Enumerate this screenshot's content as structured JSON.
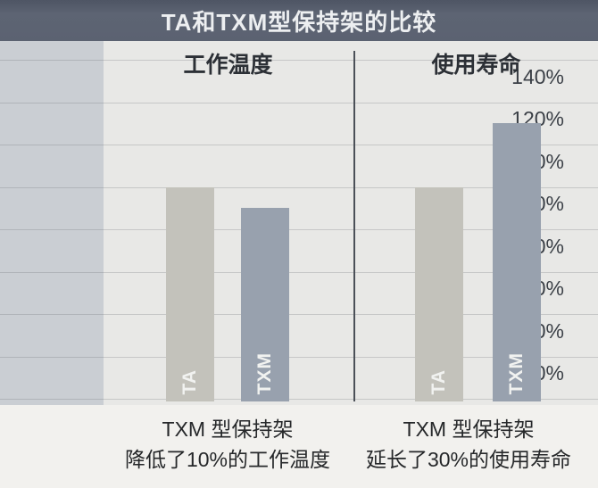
{
  "title": "TA和TXM型保持架的比较",
  "y_axis": {
    "ticks": [
      "140%",
      "120%",
      "100%",
      "80%",
      "60%",
      "40%",
      "20%",
      "0%"
    ]
  },
  "panels": [
    {
      "id": "temperature",
      "header": "工作温度",
      "bars": [
        {
          "label": "TA",
          "value": 100
        },
        {
          "label": "TXM",
          "value": 90
        }
      ],
      "caption_line1": "TXM 型保持架",
      "caption_line2": "降低了10%的工作温度"
    },
    {
      "id": "life",
      "header": "使用寿命",
      "bars": [
        {
          "label": "TA",
          "value": 100
        },
        {
          "label": "TXM",
          "value": 130
        }
      ],
      "caption_line1": "TXM 型保持架",
      "caption_line2": "延长了30%的使用寿命"
    }
  ],
  "colors": {
    "title_bar": "#5b6271",
    "title_text": "#edeff1",
    "ta_bar": "#c3c2bb",
    "txm_bar": "#98a1ae",
    "label_column_bg": "#caced3",
    "plot_bg": "#e8e8e6",
    "caption_bg": "#f2f1ee",
    "divider": "#4b5058"
  },
  "chart_data": [
    {
      "type": "bar",
      "title": "工作温度",
      "categories": [
        "TA",
        "TXM"
      ],
      "values": [
        100,
        90
      ],
      "ylabel": "",
      "ytick_labels": [
        "0%",
        "20%",
        "40%",
        "60%",
        "80%",
        "100%",
        "120%",
        "140%"
      ],
      "ylim": [
        0,
        140
      ],
      "grid": true,
      "annotation": "TXM 型保持架 降低了10%的工作温度"
    },
    {
      "type": "bar",
      "title": "使用寿命",
      "categories": [
        "TA",
        "TXM"
      ],
      "values": [
        100,
        130
      ],
      "ylabel": "",
      "ytick_labels": [
        "0%",
        "20%",
        "40%",
        "60%",
        "80%",
        "100%",
        "120%",
        "140%"
      ],
      "ylim": [
        0,
        140
      ],
      "grid": true,
      "annotation": "TXM 型保持架 延长了30%的使用寿命"
    }
  ]
}
